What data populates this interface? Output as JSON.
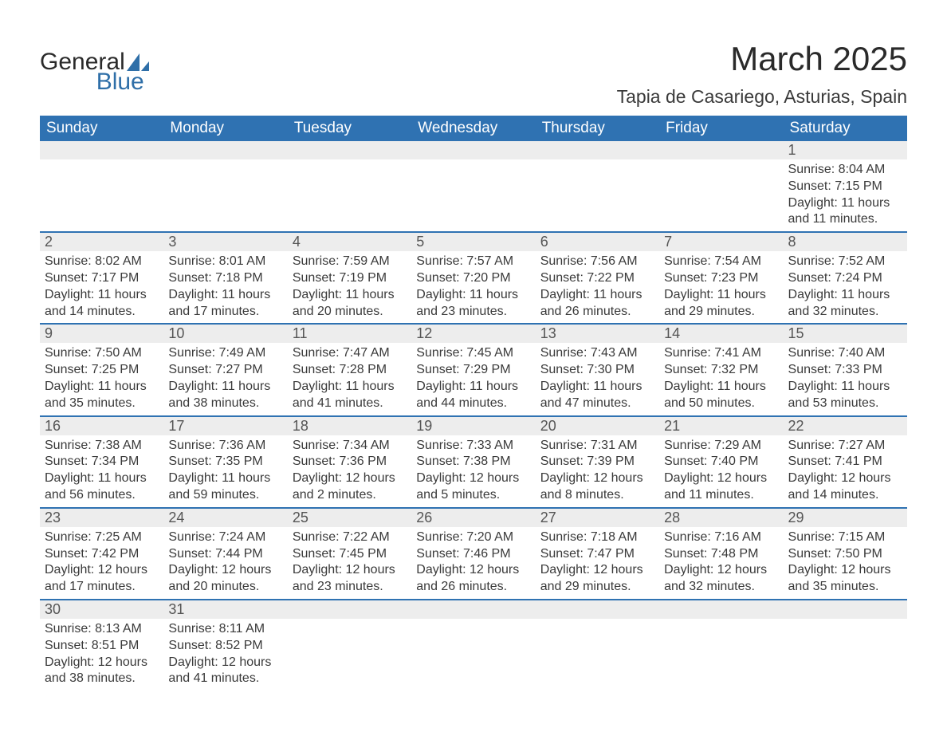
{
  "brand": {
    "general": "General",
    "blue": "Blue"
  },
  "title": "March 2025",
  "location": "Tapia de Casariego, Asturias, Spain",
  "colors": {
    "header_bg": "#2f72b2",
    "header_text": "#ffffff",
    "daynum_bg": "#ededed",
    "row_divider": "#2f72b2",
    "text": "#3a3a3a",
    "logo_blue": "#2f6fa8",
    "background": "#ffffff"
  },
  "typography": {
    "title_fontsize": 42,
    "location_fontsize": 23,
    "header_fontsize": 19,
    "daynum_fontsize": 18,
    "cell_fontsize": 16
  },
  "calendar": {
    "type": "table",
    "columns": [
      "Sunday",
      "Monday",
      "Tuesday",
      "Wednesday",
      "Thursday",
      "Friday",
      "Saturday"
    ],
    "weeks": [
      [
        null,
        null,
        null,
        null,
        null,
        null,
        {
          "day": 1,
          "sunrise": "8:04 AM",
          "sunset": "7:15 PM",
          "daylight": "11 hours and 11 minutes."
        }
      ],
      [
        {
          "day": 2,
          "sunrise": "8:02 AM",
          "sunset": "7:17 PM",
          "daylight": "11 hours and 14 minutes."
        },
        {
          "day": 3,
          "sunrise": "8:01 AM",
          "sunset": "7:18 PM",
          "daylight": "11 hours and 17 minutes."
        },
        {
          "day": 4,
          "sunrise": "7:59 AM",
          "sunset": "7:19 PM",
          "daylight": "11 hours and 20 minutes."
        },
        {
          "day": 5,
          "sunrise": "7:57 AM",
          "sunset": "7:20 PM",
          "daylight": "11 hours and 23 minutes."
        },
        {
          "day": 6,
          "sunrise": "7:56 AM",
          "sunset": "7:22 PM",
          "daylight": "11 hours and 26 minutes."
        },
        {
          "day": 7,
          "sunrise": "7:54 AM",
          "sunset": "7:23 PM",
          "daylight": "11 hours and 29 minutes."
        },
        {
          "day": 8,
          "sunrise": "7:52 AM",
          "sunset": "7:24 PM",
          "daylight": "11 hours and 32 minutes."
        }
      ],
      [
        {
          "day": 9,
          "sunrise": "7:50 AM",
          "sunset": "7:25 PM",
          "daylight": "11 hours and 35 minutes."
        },
        {
          "day": 10,
          "sunrise": "7:49 AM",
          "sunset": "7:27 PM",
          "daylight": "11 hours and 38 minutes."
        },
        {
          "day": 11,
          "sunrise": "7:47 AM",
          "sunset": "7:28 PM",
          "daylight": "11 hours and 41 minutes."
        },
        {
          "day": 12,
          "sunrise": "7:45 AM",
          "sunset": "7:29 PM",
          "daylight": "11 hours and 44 minutes."
        },
        {
          "day": 13,
          "sunrise": "7:43 AM",
          "sunset": "7:30 PM",
          "daylight": "11 hours and 47 minutes."
        },
        {
          "day": 14,
          "sunrise": "7:41 AM",
          "sunset": "7:32 PM",
          "daylight": "11 hours and 50 minutes."
        },
        {
          "day": 15,
          "sunrise": "7:40 AM",
          "sunset": "7:33 PM",
          "daylight": "11 hours and 53 minutes."
        }
      ],
      [
        {
          "day": 16,
          "sunrise": "7:38 AM",
          "sunset": "7:34 PM",
          "daylight": "11 hours and 56 minutes."
        },
        {
          "day": 17,
          "sunrise": "7:36 AM",
          "sunset": "7:35 PM",
          "daylight": "11 hours and 59 minutes."
        },
        {
          "day": 18,
          "sunrise": "7:34 AM",
          "sunset": "7:36 PM",
          "daylight": "12 hours and 2 minutes."
        },
        {
          "day": 19,
          "sunrise": "7:33 AM",
          "sunset": "7:38 PM",
          "daylight": "12 hours and 5 minutes."
        },
        {
          "day": 20,
          "sunrise": "7:31 AM",
          "sunset": "7:39 PM",
          "daylight": "12 hours and 8 minutes."
        },
        {
          "day": 21,
          "sunrise": "7:29 AM",
          "sunset": "7:40 PM",
          "daylight": "12 hours and 11 minutes."
        },
        {
          "day": 22,
          "sunrise": "7:27 AM",
          "sunset": "7:41 PM",
          "daylight": "12 hours and 14 minutes."
        }
      ],
      [
        {
          "day": 23,
          "sunrise": "7:25 AM",
          "sunset": "7:42 PM",
          "daylight": "12 hours and 17 minutes."
        },
        {
          "day": 24,
          "sunrise": "7:24 AM",
          "sunset": "7:44 PM",
          "daylight": "12 hours and 20 minutes."
        },
        {
          "day": 25,
          "sunrise": "7:22 AM",
          "sunset": "7:45 PM",
          "daylight": "12 hours and 23 minutes."
        },
        {
          "day": 26,
          "sunrise": "7:20 AM",
          "sunset": "7:46 PM",
          "daylight": "12 hours and 26 minutes."
        },
        {
          "day": 27,
          "sunrise": "7:18 AM",
          "sunset": "7:47 PM",
          "daylight": "12 hours and 29 minutes."
        },
        {
          "day": 28,
          "sunrise": "7:16 AM",
          "sunset": "7:48 PM",
          "daylight": "12 hours and 32 minutes."
        },
        {
          "day": 29,
          "sunrise": "7:15 AM",
          "sunset": "7:50 PM",
          "daylight": "12 hours and 35 minutes."
        }
      ],
      [
        {
          "day": 30,
          "sunrise": "8:13 AM",
          "sunset": "8:51 PM",
          "daylight": "12 hours and 38 minutes."
        },
        {
          "day": 31,
          "sunrise": "8:11 AM",
          "sunset": "8:52 PM",
          "daylight": "12 hours and 41 minutes."
        },
        null,
        null,
        null,
        null,
        null
      ]
    ],
    "labels": {
      "sunrise": "Sunrise: ",
      "sunset": "Sunset: ",
      "daylight": "Daylight: "
    }
  }
}
